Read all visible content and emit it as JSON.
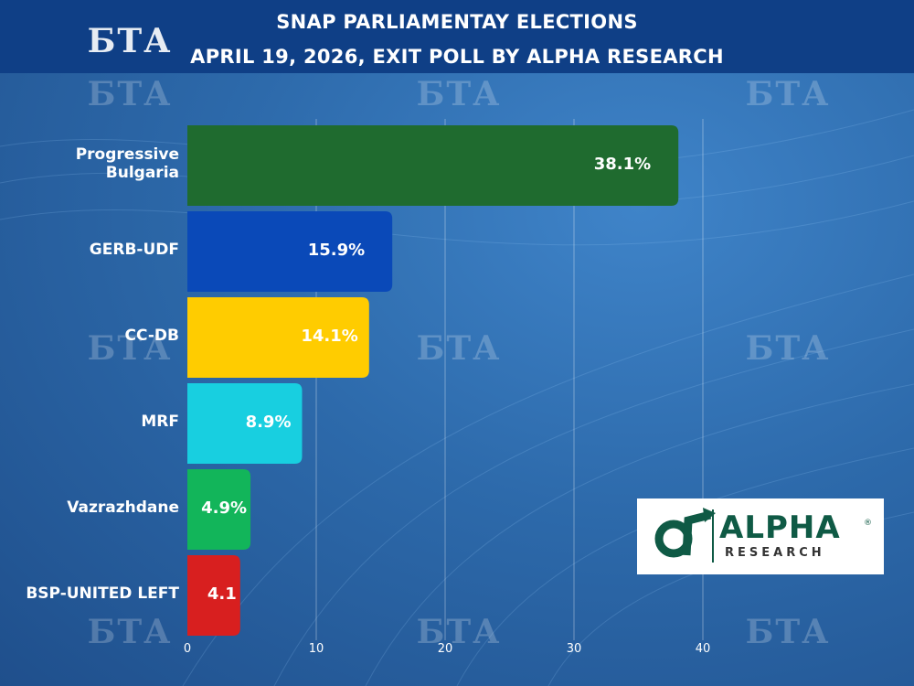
{
  "header": {
    "title_line1": "SNAP PARLIAMENTAY ELECTIONS",
    "title_line2": "APRIL 19, 2026, EXIT POLL BY ALPHA RESEARCH"
  },
  "watermark": {
    "text": "БТА"
  },
  "logo": {
    "name": "ALPHA",
    "subtitle": "RESEARCH",
    "registered": "®"
  },
  "chart_data": {
    "type": "bar",
    "orientation": "horizontal",
    "title": "SNAP PARLIAMENTAY ELECTIONS APRIL 19, 2026, EXIT POLL BY ALPHA RESEARCH",
    "categories": [
      "Progressive Bulgaria",
      "GERB-UDF",
      "CC-DB",
      "MRF",
      "Vazrazhdane",
      "BSP-UNITED LEFT"
    ],
    "category_lines": [
      [
        "Progressive",
        "Bulgaria"
      ],
      [
        "GERB-UDF"
      ],
      [
        "CC-DB"
      ],
      [
        "MRF"
      ],
      [
        "Vazrazhdane"
      ],
      [
        "BSP-UNITED LEFT"
      ]
    ],
    "values": [
      38.1,
      15.9,
      14.1,
      8.9,
      4.9,
      4.1
    ],
    "value_labels": [
      "38.1%",
      "15.9%",
      "14.1%",
      "8.9%",
      "4.9%",
      "4.1"
    ],
    "colors": [
      "#1f6b2f",
      "#0a49b8",
      "#ffcc00",
      "#18cfe0",
      "#12b55a",
      "#d81f1f"
    ],
    "xlim": [
      0,
      40
    ],
    "xticks": [
      0,
      10,
      20,
      30,
      40
    ],
    "xlabel": "",
    "ylabel": "",
    "grid": true
  }
}
